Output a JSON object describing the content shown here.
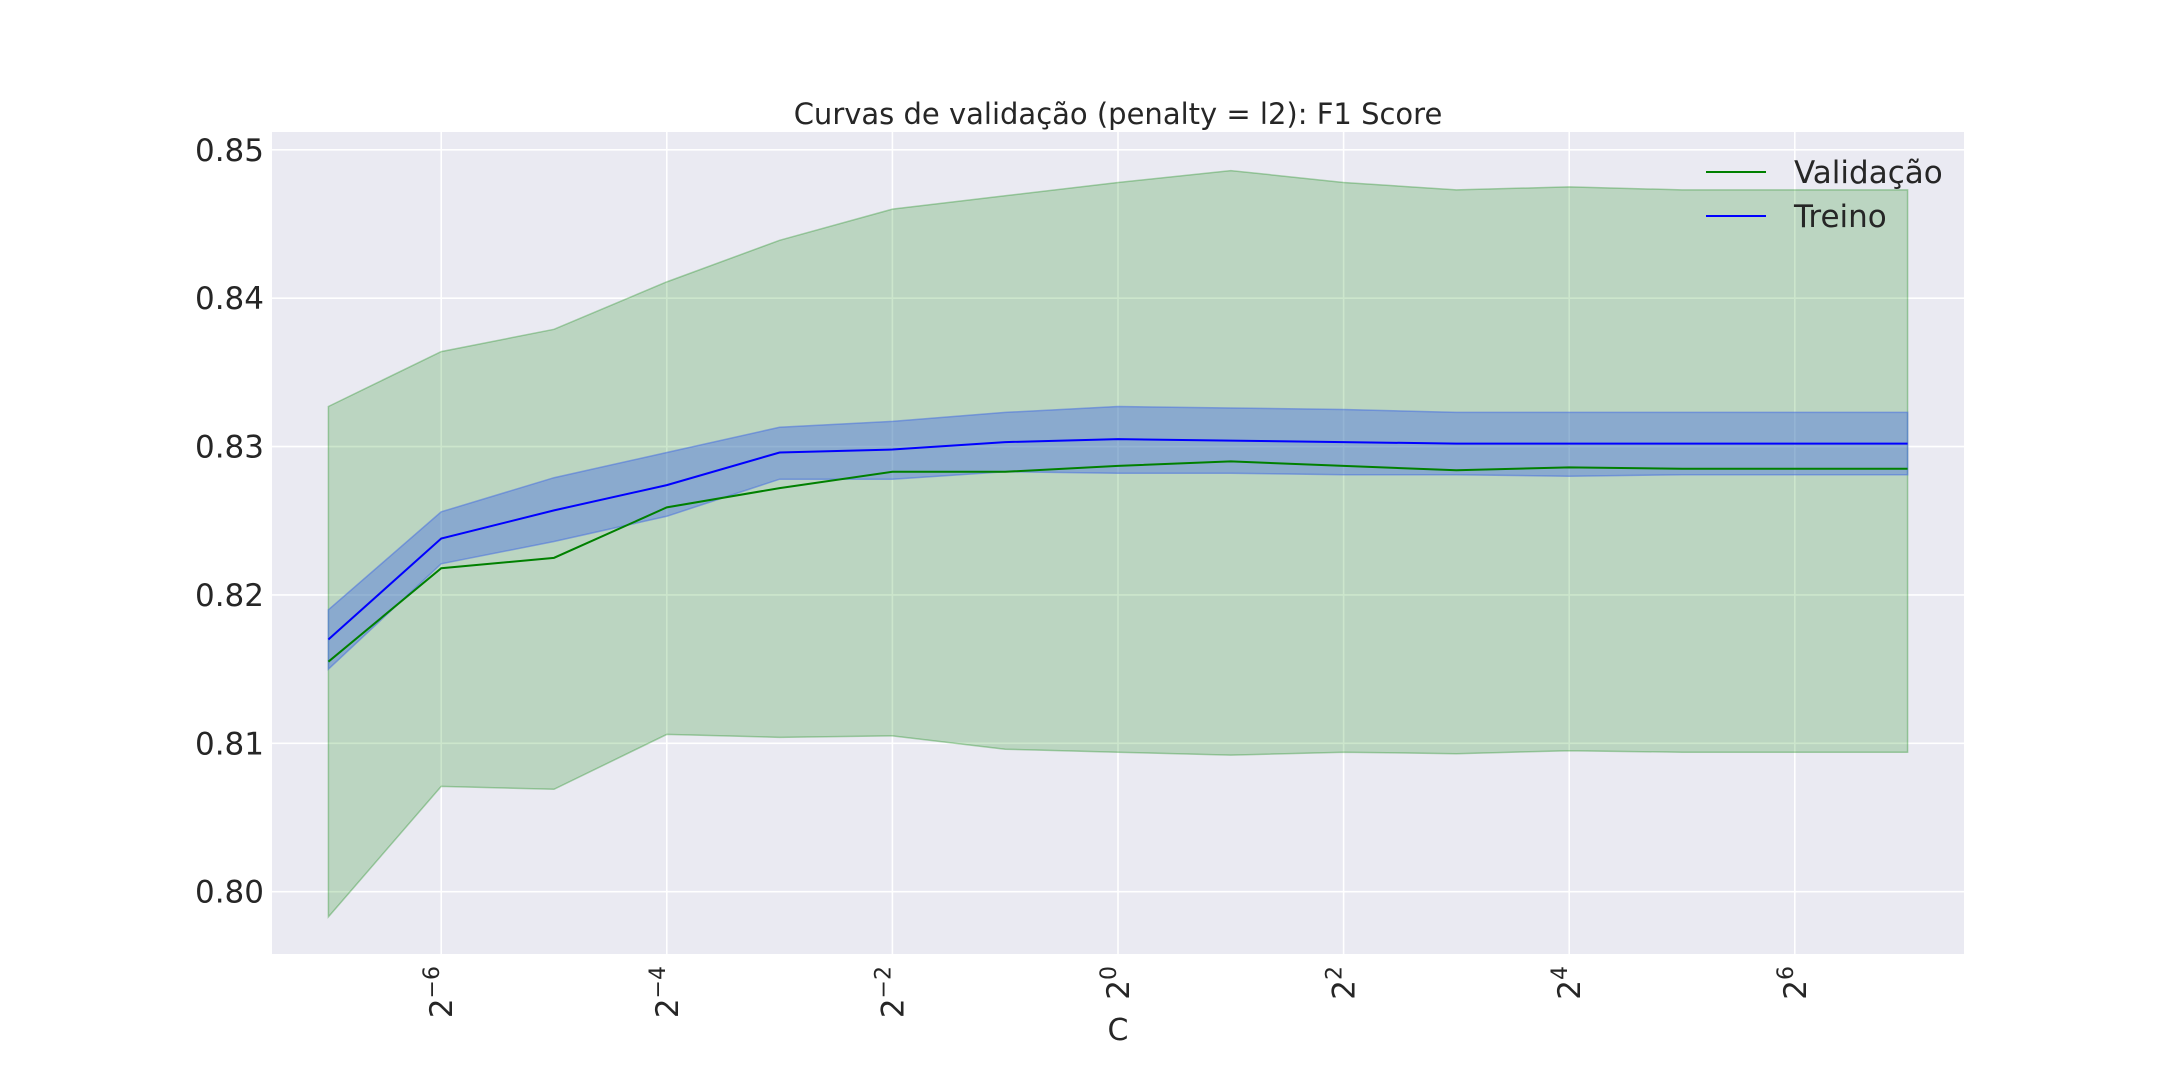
{
  "chart_data": {
    "type": "line",
    "title": "Curvas de validação (penalty = l2): F1 Score",
    "xlabel": "C",
    "ylabel": "",
    "x_scale": "log2",
    "x": [
      -7,
      -6,
      -5,
      -4,
      -3,
      -2,
      -1,
      0,
      1,
      2,
      3,
      4,
      5,
      6,
      7
    ],
    "xticks": [
      -6,
      -4,
      -2,
      0,
      2,
      4,
      6
    ],
    "xtick_base": "2",
    "xlim": [
      -7.5,
      7.5
    ],
    "ylim": [
      0.7958,
      0.8512
    ],
    "yticks": [
      "0.80",
      "0.81",
      "0.82",
      "0.83",
      "0.84",
      "0.85"
    ],
    "yticks_values": [
      0.8,
      0.81,
      0.82,
      0.83,
      0.84,
      0.85
    ],
    "grid": true,
    "legend_position": "top-right",
    "series": [
      {
        "name": "Validação",
        "color": "#008000",
        "band_color": "#008000",
        "values": [
          0.8155,
          0.8218,
          0.8225,
          0.8259,
          0.8272,
          0.8283,
          0.8283,
          0.8287,
          0.829,
          0.8287,
          0.8284,
          0.8286,
          0.8285,
          0.8285,
          0.8285
        ],
        "lower": [
          0.7983,
          0.8071,
          0.8069,
          0.8106,
          0.8104,
          0.8105,
          0.8096,
          0.8094,
          0.8092,
          0.8094,
          0.8093,
          0.8095,
          0.8094,
          0.8094,
          0.8094
        ],
        "upper": [
          0.8327,
          0.8364,
          0.8379,
          0.8411,
          0.8439,
          0.846,
          0.8469,
          0.8478,
          0.8486,
          0.8478,
          0.8473,
          0.8475,
          0.8473,
          0.8473,
          0.8473
        ]
      },
      {
        "name": "Treino",
        "color": "#0000ff",
        "band_color": "#4169e1",
        "values": [
          0.817,
          0.8238,
          0.8257,
          0.8274,
          0.8296,
          0.8298,
          0.8303,
          0.8305,
          0.8304,
          0.8303,
          0.8302,
          0.8302,
          0.8302,
          0.8302,
          0.8302
        ],
        "lower": [
          0.815,
          0.8221,
          0.8236,
          0.8253,
          0.8278,
          0.8278,
          0.8283,
          0.8282,
          0.8282,
          0.8281,
          0.8281,
          0.828,
          0.8281,
          0.8281,
          0.8281
        ],
        "upper": [
          0.819,
          0.8256,
          0.8279,
          0.8296,
          0.8313,
          0.8317,
          0.8323,
          0.8327,
          0.8326,
          0.8325,
          0.8323,
          0.8323,
          0.8323,
          0.8323,
          0.8323
        ]
      }
    ]
  }
}
